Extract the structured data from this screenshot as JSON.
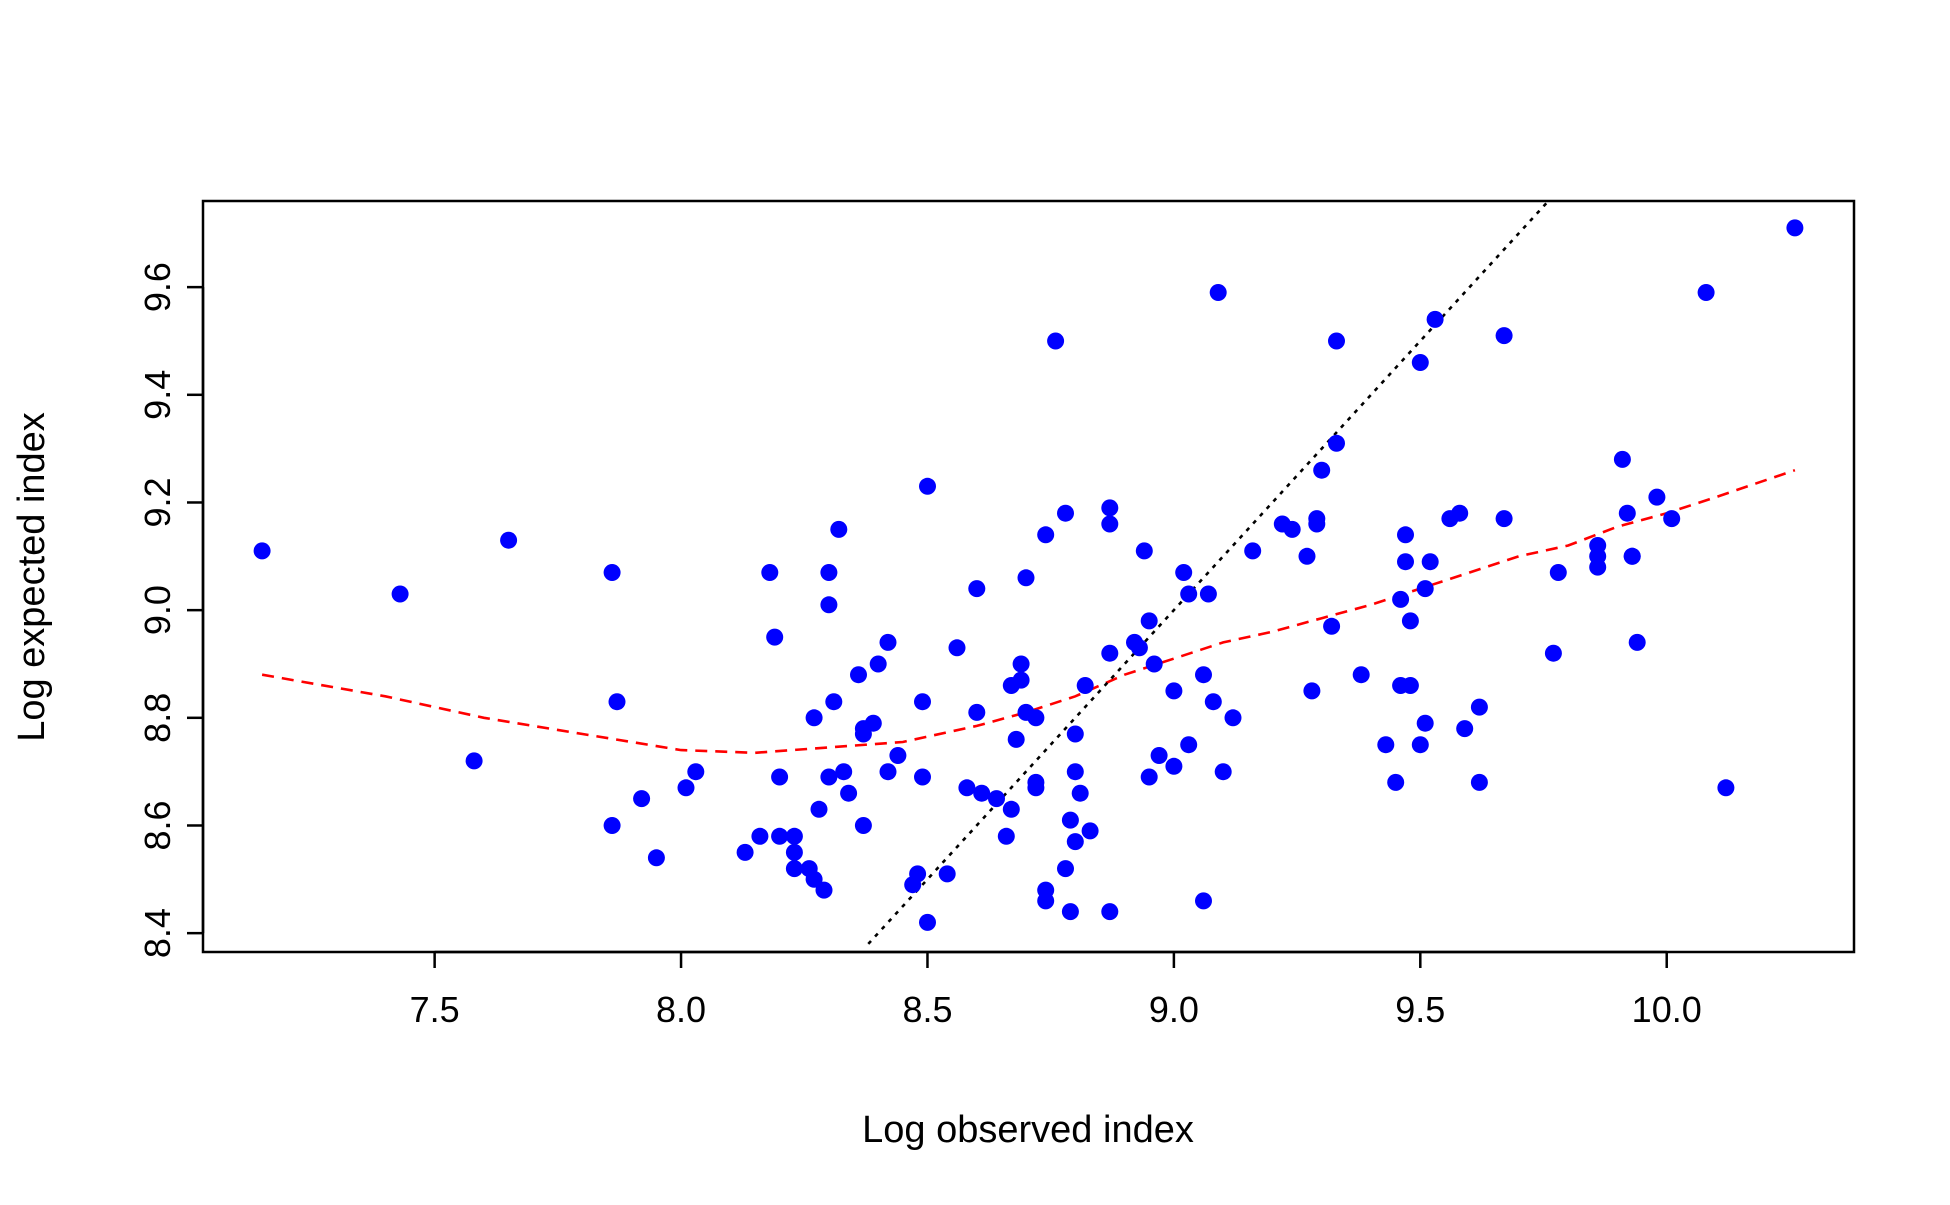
{
  "chart_data": {
    "type": "scatter",
    "title": "",
    "xlabel": "Log observed index",
    "ylabel": "Log expected index",
    "xlim": [
      7.03,
      10.38
    ],
    "ylim": [
      8.365,
      9.76
    ],
    "xticks": [
      "7.5",
      "8.0",
      "8.5",
      "9.0",
      "9.5",
      "10.0"
    ],
    "yticks": [
      "8.4",
      "8.6",
      "8.8",
      "9.0",
      "9.2",
      "9.4",
      "9.6"
    ],
    "grid": false,
    "point_color": "#0000ff",
    "series": [
      {
        "type": "scatter",
        "color": "#0000ff",
        "points": [
          [
            7.15,
            9.11
          ],
          [
            7.43,
            9.03
          ],
          [
            7.58,
            8.72
          ],
          [
            7.65,
            9.13
          ],
          [
            7.86,
            8.6
          ],
          [
            7.86,
            9.07
          ],
          [
            7.87,
            8.83
          ],
          [
            7.92,
            8.65
          ],
          [
            7.95,
            8.54
          ],
          [
            8.01,
            8.67
          ],
          [
            8.03,
            8.7
          ],
          [
            8.13,
            8.55
          ],
          [
            8.16,
            8.58
          ],
          [
            8.18,
            9.07
          ],
          [
            8.19,
            8.95
          ],
          [
            8.2,
            8.58
          ],
          [
            8.2,
            8.69
          ],
          [
            8.23,
            8.52
          ],
          [
            8.23,
            8.55
          ],
          [
            8.23,
            8.58
          ],
          [
            8.26,
            8.52
          ],
          [
            8.27,
            8.5
          ],
          [
            8.27,
            8.8
          ],
          [
            8.28,
            8.63
          ],
          [
            8.29,
            8.48
          ],
          [
            8.3,
            8.69
          ],
          [
            8.3,
            9.07
          ],
          [
            8.3,
            9.01
          ],
          [
            8.31,
            8.83
          ],
          [
            8.32,
            9.15
          ],
          [
            8.33,
            8.7
          ],
          [
            8.34,
            8.66
          ],
          [
            8.36,
            8.88
          ],
          [
            8.37,
            8.77
          ],
          [
            8.37,
            8.78
          ],
          [
            8.37,
            8.6
          ],
          [
            8.39,
            8.79
          ],
          [
            8.4,
            8.9
          ],
          [
            8.42,
            8.94
          ],
          [
            8.42,
            8.7
          ],
          [
            8.44,
            8.73
          ],
          [
            8.47,
            8.49
          ],
          [
            8.48,
            8.51
          ],
          [
            8.49,
            8.69
          ],
          [
            8.49,
            8.83
          ],
          [
            8.5,
            8.42
          ],
          [
            8.5,
            9.23
          ],
          [
            8.54,
            8.51
          ],
          [
            8.56,
            8.93
          ],
          [
            8.58,
            8.67
          ],
          [
            8.6,
            9.04
          ],
          [
            8.6,
            8.81
          ],
          [
            8.61,
            8.66
          ],
          [
            8.64,
            8.65
          ],
          [
            8.66,
            8.58
          ],
          [
            8.67,
            8.86
          ],
          [
            8.67,
            8.63
          ],
          [
            8.68,
            8.76
          ],
          [
            8.69,
            8.87
          ],
          [
            8.69,
            8.9
          ],
          [
            8.7,
            9.06
          ],
          [
            8.7,
            8.81
          ],
          [
            8.72,
            8.67
          ],
          [
            8.72,
            8.68
          ],
          [
            8.72,
            8.8
          ],
          [
            8.74,
            8.48
          ],
          [
            8.74,
            8.46
          ],
          [
            8.74,
            9.14
          ],
          [
            8.76,
            9.5
          ],
          [
            8.78,
            8.52
          ],
          [
            8.78,
            9.18
          ],
          [
            8.79,
            8.44
          ],
          [
            8.79,
            8.61
          ],
          [
            8.8,
            8.57
          ],
          [
            8.8,
            8.77
          ],
          [
            8.8,
            8.7
          ],
          [
            8.81,
            8.66
          ],
          [
            8.82,
            8.86
          ],
          [
            8.83,
            8.59
          ],
          [
            8.87,
            8.44
          ],
          [
            8.87,
            8.92
          ],
          [
            8.87,
            9.16
          ],
          [
            8.87,
            9.19
          ],
          [
            8.92,
            8.94
          ],
          [
            8.93,
            8.93
          ],
          [
            8.94,
            9.11
          ],
          [
            8.95,
            8.69
          ],
          [
            8.95,
            8.98
          ],
          [
            8.96,
            8.9
          ],
          [
            8.97,
            8.73
          ],
          [
            9.0,
            8.71
          ],
          [
            9.0,
            8.85
          ],
          [
            9.02,
            9.07
          ],
          [
            9.03,
            9.03
          ],
          [
            9.03,
            8.75
          ],
          [
            9.06,
            8.46
          ],
          [
            9.06,
            8.88
          ],
          [
            9.07,
            9.03
          ],
          [
            9.08,
            8.83
          ],
          [
            9.09,
            9.59
          ],
          [
            9.1,
            8.7
          ],
          [
            9.12,
            8.8
          ],
          [
            9.16,
            9.11
          ],
          [
            9.22,
            9.16
          ],
          [
            9.24,
            9.15
          ],
          [
            9.27,
            9.1
          ],
          [
            9.28,
            8.85
          ],
          [
            9.29,
            9.17
          ],
          [
            9.29,
            9.16
          ],
          [
            9.3,
            9.26
          ],
          [
            9.32,
            8.97
          ],
          [
            9.33,
            9.31
          ],
          [
            9.33,
            9.5
          ],
          [
            9.38,
            8.88
          ],
          [
            9.43,
            8.75
          ],
          [
            9.45,
            8.68
          ],
          [
            9.46,
            9.02
          ],
          [
            9.46,
            8.86
          ],
          [
            9.47,
            9.14
          ],
          [
            9.47,
            9.09
          ],
          [
            9.48,
            8.98
          ],
          [
            9.48,
            8.86
          ],
          [
            9.5,
            9.46
          ],
          [
            9.5,
            8.75
          ],
          [
            9.51,
            9.04
          ],
          [
            9.51,
            8.79
          ],
          [
            9.52,
            9.09
          ],
          [
            9.53,
            9.54
          ],
          [
            9.56,
            9.17
          ],
          [
            9.58,
            9.18
          ],
          [
            9.59,
            8.78
          ],
          [
            9.62,
            8.82
          ],
          [
            9.62,
            8.68
          ],
          [
            9.67,
            9.17
          ],
          [
            9.67,
            9.51
          ],
          [
            9.77,
            8.92
          ],
          [
            9.78,
            9.07
          ],
          [
            9.86,
            9.12
          ],
          [
            9.86,
            9.1
          ],
          [
            9.86,
            9.08
          ],
          [
            9.91,
            9.28
          ],
          [
            9.92,
            9.18
          ],
          [
            9.93,
            9.1
          ],
          [
            9.93,
            9.1
          ],
          [
            9.94,
            8.94
          ],
          [
            9.98,
            9.21
          ],
          [
            10.01,
            9.17
          ],
          [
            10.08,
            9.59
          ],
          [
            10.12,
            8.67
          ],
          [
            10.26,
            9.71
          ]
        ]
      },
      {
        "type": "line",
        "color": "#ff0000",
        "dash": "dashed",
        "points": [
          [
            7.15,
            8.88
          ],
          [
            7.4,
            8.84
          ],
          [
            7.6,
            8.8
          ],
          [
            7.8,
            8.77
          ],
          [
            8.0,
            8.74
          ],
          [
            8.15,
            8.735
          ],
          [
            8.3,
            8.745
          ],
          [
            8.45,
            8.755
          ],
          [
            8.6,
            8.785
          ],
          [
            8.7,
            8.81
          ],
          [
            8.8,
            8.84
          ],
          [
            8.9,
            8.88
          ],
          [
            9.0,
            8.91
          ],
          [
            9.1,
            8.94
          ],
          [
            9.2,
            8.96
          ],
          [
            9.3,
            8.985
          ],
          [
            9.4,
            9.01
          ],
          [
            9.5,
            9.04
          ],
          [
            9.6,
            9.07
          ],
          [
            9.7,
            9.1
          ],
          [
            9.8,
            9.12
          ],
          [
            9.9,
            9.155
          ],
          [
            10.0,
            9.18
          ],
          [
            10.1,
            9.21
          ],
          [
            10.26,
            9.26
          ]
        ]
      },
      {
        "type": "line",
        "color": "#000000",
        "dash": "dotted",
        "points": [
          [
            8.38,
            8.38
          ],
          [
            9.76,
            9.76
          ]
        ]
      }
    ]
  }
}
